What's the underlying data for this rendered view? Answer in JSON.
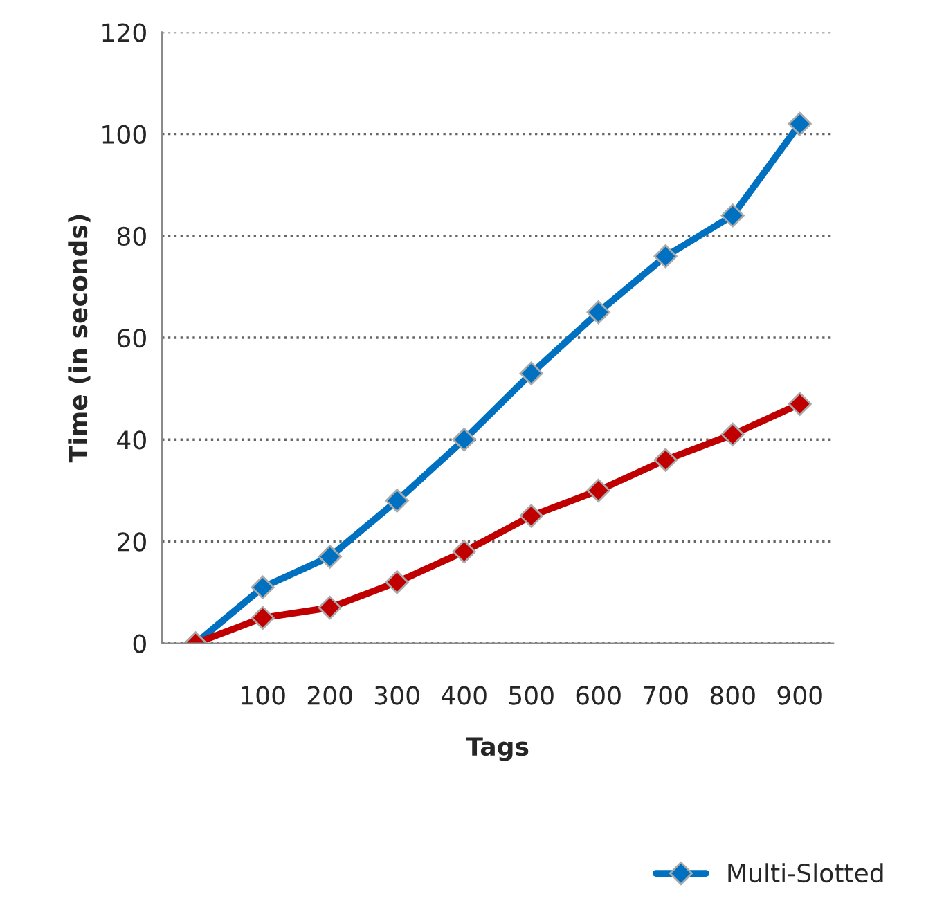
{
  "chart_data": {
    "type": "line",
    "xlabel": "Tags",
    "ylabel": "Time (in seconds)",
    "categories": [
      null,
      "100",
      "200",
      "300",
      "400",
      "500",
      "600",
      "700",
      "800",
      "900"
    ],
    "series": [
      {
        "name": "Multi-Slotted",
        "color": "#0070c0",
        "values": [
          0,
          11,
          17,
          28,
          40,
          53,
          65,
          76,
          84,
          102
        ]
      },
      {
        "color": "#c00000",
        "values": [
          0,
          5,
          7,
          12,
          18,
          25,
          30,
          36,
          41,
          47
        ]
      }
    ],
    "ylim": [
      0,
      120
    ],
    "yticks": [
      0,
      20,
      40,
      60,
      80,
      100,
      120
    ],
    "grid": "y",
    "legend": "bottom right",
    "marker": "diamond",
    "line_style": "solid"
  }
}
